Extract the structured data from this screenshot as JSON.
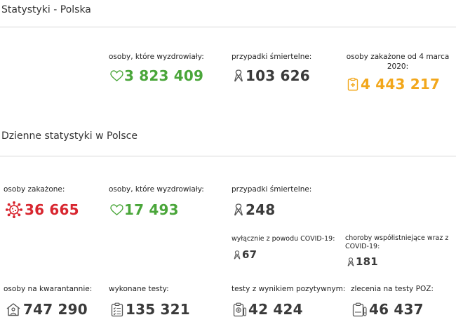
{
  "sections": {
    "poland_title": "Statystyki - Polska",
    "daily_title": "Dzienne statystyki w Polsce"
  },
  "colors": {
    "green": "#4aa63a",
    "red": "#d8262f",
    "orange": "#f2a71b",
    "grey": "#3a3a3a"
  },
  "totals": {
    "recovered": {
      "label": "osoby, które wyzdrowiały:",
      "value": "3 823 409",
      "icon": "heart-icon"
    },
    "deaths": {
      "label": "przypadki śmiertelne:",
      "value": "103 626",
      "icon": "ribbon-icon"
    },
    "infected": {
      "label": "osoby zakażone od 4 marca 2020:",
      "value": "4 443 217",
      "icon": "clipboard-icon"
    }
  },
  "daily": {
    "infected": {
      "label": "osoby zakażone:",
      "value": "36 665",
      "icon": "virus-icon"
    },
    "recovered": {
      "label": "osoby, które wyzdrowiały:",
      "value": "17 493",
      "icon": "heart-icon"
    },
    "deaths": {
      "label": "przypadki śmiertelne:",
      "value": "248",
      "icon": "ribbon-icon"
    },
    "covid_only": {
      "label": "wyłącznie z powodu COVID-19:",
      "value": "67",
      "icon": "ribbon-icon"
    },
    "comorbid": {
      "label": "choroby współistniejące wraz z COVID-19:",
      "value": "181",
      "icon": "ribbon-icon"
    },
    "quarantine": {
      "label": "osoby na kwarantannie:",
      "value": "747 290",
      "icon": "house-person-icon"
    },
    "tests": {
      "label": "wykonane testy:",
      "value": "135 321",
      "icon": "checklist-icon"
    },
    "positive_tests": {
      "label": "testy z wynikiem pozytywnym:",
      "value": "42 424",
      "icon": "positive-test-icon"
    },
    "poz_orders": {
      "label": "zlecenia na testy POZ:",
      "value": "46 437",
      "icon": "poz-order-icon"
    }
  }
}
